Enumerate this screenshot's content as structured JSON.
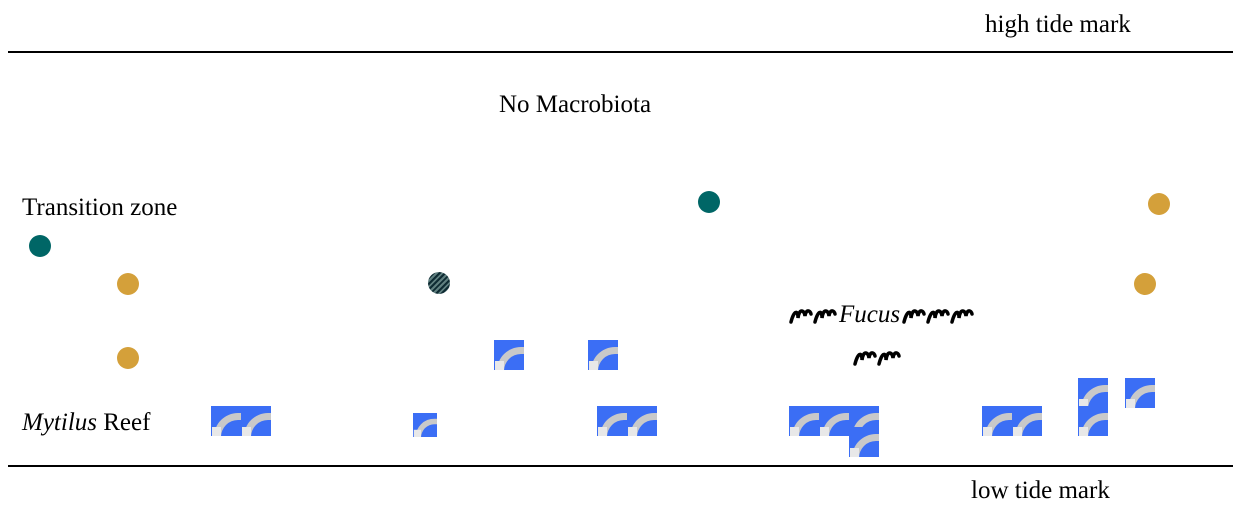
{
  "zones": {
    "high_tide": "high tide mark",
    "no_macrobiota": "No Macrobiota",
    "transition": "Transition zone",
    "fucus": "Fucus",
    "mytilus_genus": "Mytilus",
    "mytilus_suffix": " Reef",
    "low_tide": "low tide mark"
  },
  "colors": {
    "teal_dot": "#006666",
    "gold_dot": "#d4a03a",
    "striped_dot": "#1e3b42",
    "mussel_bg": "#3b6ef5",
    "mussel_shell": "#c9c9c9"
  },
  "icons": {
    "dot": "circle",
    "mussel": "mytilus-mussel-icon",
    "seaweed": "fucus-seaweed-icon"
  }
}
